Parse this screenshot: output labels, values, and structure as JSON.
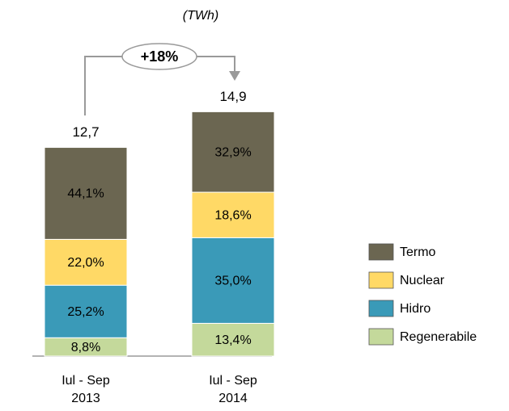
{
  "chart_data": {
    "type": "stacked_bar",
    "subtitle": "(TWh)",
    "annotation": "+18%",
    "categories": [
      [
        "Iul - Sep",
        "2013"
      ],
      [
        "Iul - Sep",
        "2014"
      ]
    ],
    "totals": {
      "values": [
        12.7,
        14.9
      ],
      "value_labels": [
        "12,7",
        "14,9"
      ]
    },
    "series": [
      {
        "name": "Termo",
        "color": "#6b6651",
        "label_color": "#ffffff",
        "values": [
          44.1,
          32.9
        ],
        "value_labels": [
          "44,1%",
          "32,9%"
        ]
      },
      {
        "name": "Nuclear",
        "color": "#ffd966",
        "label_color": "#000000",
        "values": [
          22.0,
          18.6
        ],
        "value_labels": [
          "22,0%",
          "18,6%"
        ]
      },
      {
        "name": "Hidro",
        "color": "#3a9ab8",
        "label_color": "#ffffff",
        "values": [
          25.2,
          35.0
        ],
        "value_labels": [
          "25,2%",
          "35,0%"
        ]
      },
      {
        "name": "Regenerabile",
        "color": "#c4d99b",
        "label_color": "#000000",
        "values": [
          8.8,
          13.4
        ],
        "value_labels": [
          "8,8%",
          "13,4%"
        ]
      }
    ]
  }
}
